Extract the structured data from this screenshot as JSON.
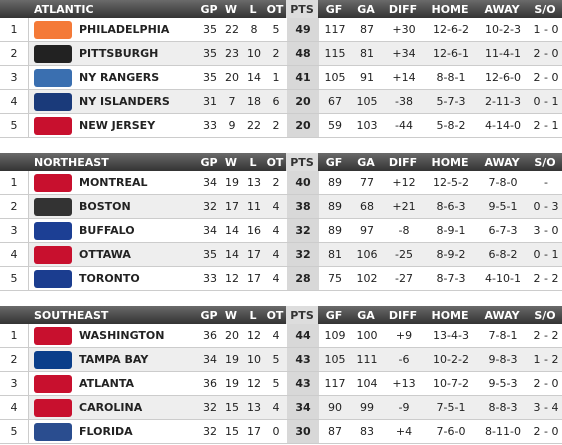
{
  "divisions": [
    {
      "name": "ATLANTIC",
      "columns": [
        "GP",
        "W",
        "L",
        "OT",
        "PTS",
        "GF",
        "GA",
        "DIFF",
        "HOME",
        "AWAY",
        "S/O"
      ],
      "rows": [
        {
          "rank": 1,
          "team": "PHILADELPHIA",
          "stats": [
            35,
            22,
            8,
            5,
            49,
            117,
            87,
            "+30",
            "12-6-2",
            "10-2-3",
            "1 - 0"
          ]
        },
        {
          "rank": 2,
          "team": "PITTSBURGH",
          "stats": [
            35,
            23,
            10,
            2,
            48,
            115,
            81,
            "+34",
            "12-6-1",
            "11-4-1",
            "2 - 0"
          ]
        },
        {
          "rank": 3,
          "team": "NY RANGERS",
          "stats": [
            35,
            20,
            14,
            1,
            41,
            105,
            91,
            "+14",
            "8-8-1",
            "12-6-0",
            "2 - 0"
          ]
        },
        {
          "rank": 4,
          "team": "NY ISLANDERS",
          "stats": [
            31,
            7,
            18,
            6,
            20,
            67,
            105,
            -38,
            "5-7-3",
            "2-11-3",
            "0 - 1"
          ]
        },
        {
          "rank": 5,
          "team": "NEW JERSEY",
          "stats": [
            33,
            9,
            22,
            2,
            20,
            59,
            103,
            -44,
            "5-8-2",
            "4-14-0",
            "2 - 1"
          ]
        }
      ]
    },
    {
      "name": "NORTHEAST",
      "columns": [
        "GP",
        "W",
        "L",
        "OT",
        "PTS",
        "GF",
        "GA",
        "DIFF",
        "HOME",
        "AWAY",
        "S/O"
      ],
      "rows": [
        {
          "rank": 1,
          "team": "MONTREAL",
          "stats": [
            34,
            19,
            13,
            2,
            40,
            89,
            77,
            "+12",
            "12-5-2",
            "7-8-0",
            "-"
          ]
        },
        {
          "rank": 2,
          "team": "BOSTON",
          "stats": [
            32,
            17,
            11,
            4,
            38,
            89,
            68,
            "+21",
            "8-6-3",
            "9-5-1",
            "0 - 3"
          ]
        },
        {
          "rank": 3,
          "team": "BUFFALO",
          "stats": [
            34,
            14,
            16,
            4,
            32,
            89,
            97,
            -8,
            "8-9-1",
            "6-7-3",
            "3 - 0"
          ]
        },
        {
          "rank": 4,
          "team": "OTTAWA",
          "stats": [
            35,
            14,
            17,
            4,
            32,
            81,
            106,
            -25,
            "8-9-2",
            "6-8-2",
            "0 - 1"
          ]
        },
        {
          "rank": 5,
          "team": "TORONTO",
          "stats": [
            33,
            12,
            17,
            4,
            28,
            75,
            102,
            -27,
            "8-7-3",
            "4-10-1",
            "2 - 2"
          ]
        }
      ]
    },
    {
      "name": "SOUTHEAST",
      "columns": [
        "GP",
        "W",
        "L",
        "OT",
        "PTS",
        "GF",
        "GA",
        "DIFF",
        "HOME",
        "AWAY",
        "S/O"
      ],
      "rows": [
        {
          "rank": 1,
          "team": "WASHINGTON",
          "stats": [
            36,
            20,
            12,
            4,
            44,
            109,
            100,
            "+9",
            "13-4-3",
            "7-8-1",
            "2 - 2"
          ]
        },
        {
          "rank": 2,
          "team": "TAMPA BAY",
          "stats": [
            34,
            19,
            10,
            5,
            43,
            105,
            111,
            -6,
            "10-2-2",
            "9-8-3",
            "1 - 2"
          ]
        },
        {
          "rank": 3,
          "team": "ATLANTA",
          "stats": [
            36,
            19,
            12,
            5,
            43,
            117,
            104,
            "+13",
            "10-7-2",
            "9-5-3",
            "2 - 0"
          ]
        },
        {
          "rank": 4,
          "team": "CAROLINA",
          "stats": [
            32,
            15,
            13,
            4,
            34,
            90,
            99,
            -9,
            "7-5-1",
            "8-8-3",
            "3 - 4"
          ]
        },
        {
          "rank": 5,
          "team": "FLORIDA",
          "stats": [
            32,
            15,
            17,
            0,
            30,
            87,
            83,
            "+4",
            "7-6-0",
            "8-11-0",
            "2 - 0"
          ]
        }
      ]
    }
  ]
}
